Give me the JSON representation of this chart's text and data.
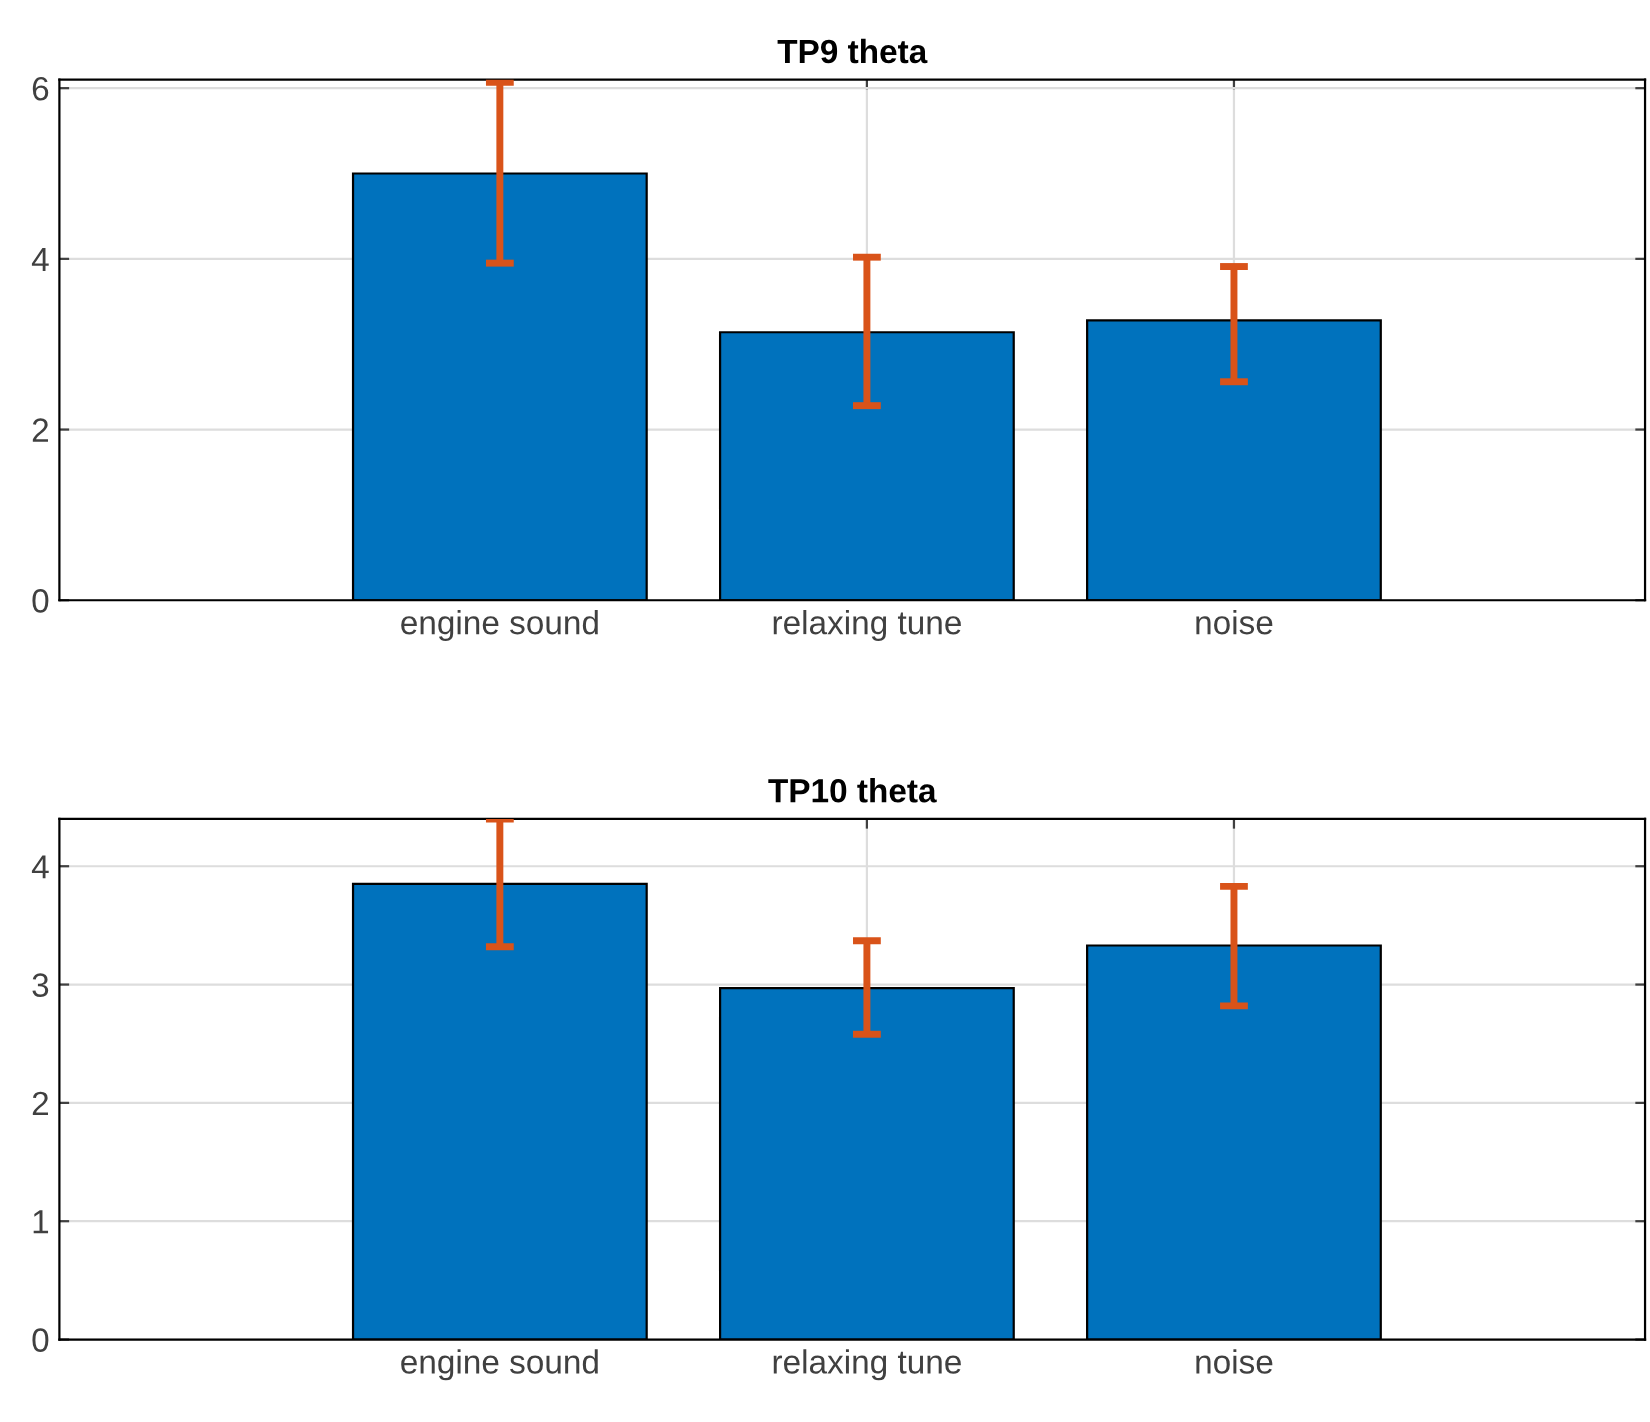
{
  "chart_data": [
    {
      "type": "bar",
      "title": "TP9 theta",
      "categories": [
        "engine sound",
        "relaxing tune",
        "noise"
      ],
      "series": [
        {
          "color": "#0072bd",
          "values": [
            5.0,
            3.14,
            3.28
          ],
          "errors": [
            [
              3.95,
              6.07
            ],
            [
              2.28,
              4.02
            ],
            [
              2.56,
              3.91
            ]
          ]
        }
      ],
      "ylim": [
        0,
        6.1
      ],
      "yticks": [
        0,
        2,
        4,
        6
      ],
      "grid": true
    },
    {
      "type": "bar",
      "title": "TP10 theta",
      "categories": [
        "engine sound",
        "relaxing tune",
        "noise"
      ],
      "series": [
        {
          "color": "#0072bd",
          "values": [
            3.85,
            2.97,
            3.33
          ],
          "errors": [
            [
              3.32,
              4.4
            ],
            [
              2.58,
              3.37
            ],
            [
              2.82,
              3.83
            ]
          ]
        }
      ],
      "ylim": [
        0,
        4.4
      ],
      "yticks": [
        0,
        1,
        2,
        3,
        4
      ],
      "grid": true
    }
  ]
}
